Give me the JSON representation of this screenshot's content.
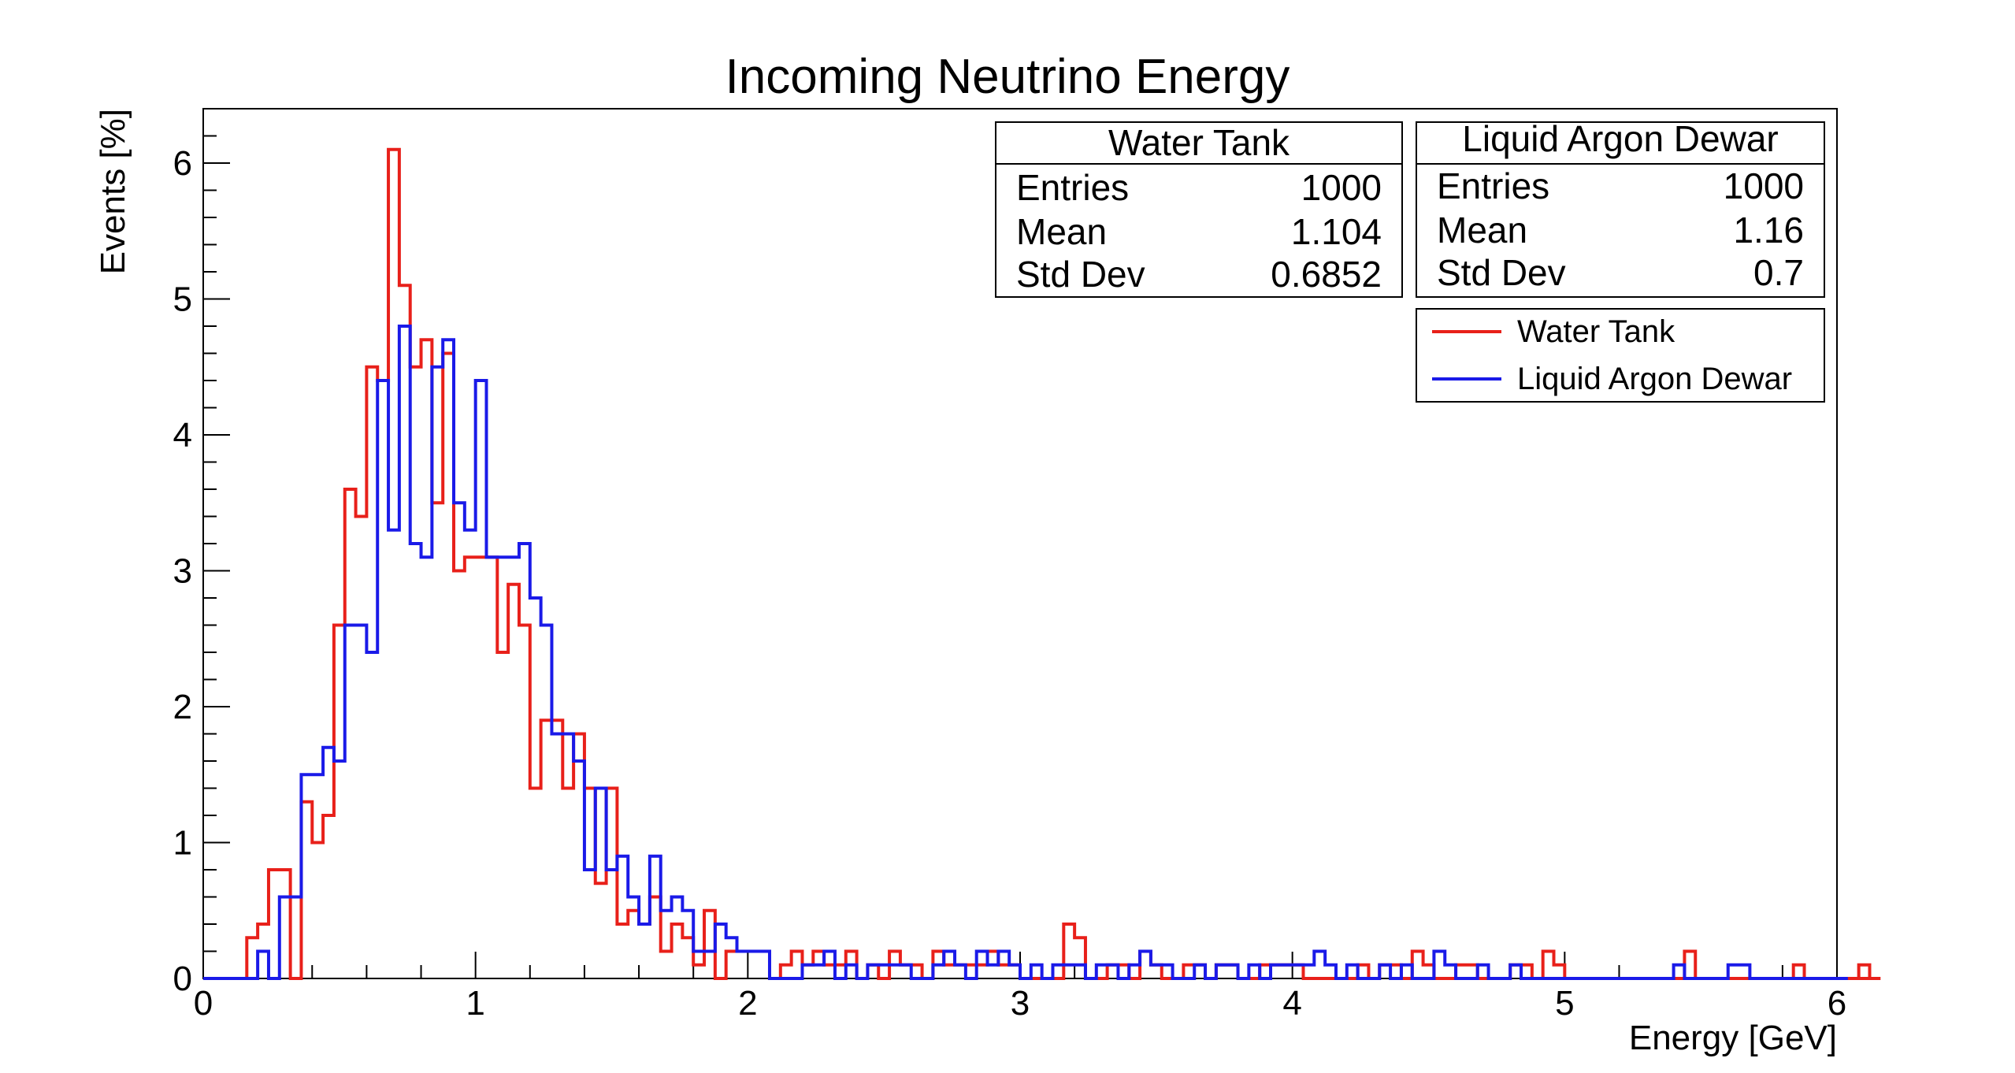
{
  "chart_data": {
    "type": "histogram",
    "title": "Incoming Neutrino Energy",
    "xlabel": "Energy [GeV]",
    "ylabel": "Events [%]",
    "xlim": [
      0,
      6
    ],
    "ylim": [
      0,
      6.4
    ],
    "x_ticks": [
      0,
      1,
      2,
      3,
      4,
      5,
      6
    ],
    "y_ticks": [
      0,
      1,
      2,
      3,
      4,
      5,
      6
    ],
    "bin_width": 0.04,
    "bins": 150,
    "legend_position": "top-right",
    "series": [
      {
        "name": "Water Tank",
        "color": "#e8201a",
        "values": [
          0,
          0,
          0,
          0,
          0.3,
          0.4,
          0.8,
          0.8,
          0,
          1.3,
          1.0,
          1.2,
          2.6,
          3.6,
          3.4,
          4.5,
          4.4,
          6.1,
          5.1,
          4.5,
          4.7,
          3.5,
          4.6,
          3.0,
          3.1,
          3.1,
          3.1,
          2.4,
          2.9,
          2.6,
          1.4,
          1.9,
          1.9,
          1.4,
          1.8,
          1.4,
          0.7,
          1.4,
          0.4,
          0.5,
          0.4,
          0.6,
          0.2,
          0.4,
          0.3,
          0.1,
          0.5,
          0,
          0.2,
          0.2,
          0.2,
          0.2,
          0,
          0.1,
          0.2,
          0.1,
          0.2,
          0.1,
          0.1,
          0.2,
          0,
          0.1,
          0,
          0.2,
          0.1,
          0.1,
          0,
          0.2,
          0.1,
          0.1,
          0.1,
          0.1,
          0.2,
          0.1,
          0.1,
          0,
          0,
          0,
          0,
          0.4,
          0.3,
          0,
          0,
          0.1,
          0.1,
          0,
          0.2,
          0.1,
          0,
          0,
          0.1,
          0.1,
          0,
          0.1,
          0.1,
          0,
          0,
          0.1,
          0.1,
          0.1,
          0.1,
          0,
          0,
          0,
          0,
          0,
          0.1,
          0,
          0.1,
          0.1,
          0,
          0.2,
          0.1,
          0,
          0,
          0.1,
          0.1,
          0,
          0,
          0,
          0.1,
          0.1,
          0,
          0.2,
          0.1,
          0,
          0,
          0,
          0,
          0,
          0,
          0,
          0,
          0,
          0,
          0,
          0.2,
          0,
          0,
          0,
          0,
          0,
          0,
          0,
          0,
          0,
          0.1,
          0,
          0,
          0,
          0,
          0,
          0.1,
          0
        ],
        "stats": {
          "Entries": "1000",
          "Mean": "1.104",
          "Std Dev": "0.6852"
        }
      },
      {
        "name": "Liquid Argon Dewar",
        "color": "#1a1ae8",
        "values": [
          0,
          0,
          0,
          0,
          0,
          0.2,
          0,
          0.6,
          0.6,
          1.5,
          1.5,
          1.7,
          1.6,
          2.6,
          2.6,
          2.4,
          4.4,
          3.3,
          4.8,
          3.2,
          3.1,
          4.5,
          4.7,
          3.5,
          3.3,
          4.4,
          3.1,
          3.1,
          3.1,
          3.2,
          2.8,
          2.6,
          1.8,
          1.8,
          1.6,
          0.8,
          1.4,
          0.8,
          0.9,
          0.6,
          0.4,
          0.9,
          0.5,
          0.6,
          0.5,
          0.2,
          0.2,
          0.4,
          0.3,
          0.2,
          0.2,
          0.2,
          0,
          0,
          0,
          0.1,
          0.1,
          0.2,
          0,
          0.1,
          0,
          0.1,
          0.1,
          0.1,
          0.1,
          0,
          0,
          0.1,
          0.2,
          0.1,
          0,
          0.2,
          0.1,
          0.2,
          0.1,
          0,
          0.1,
          0,
          0.1,
          0.1,
          0.1,
          0,
          0.1,
          0.1,
          0,
          0.1,
          0.2,
          0.1,
          0.1,
          0,
          0,
          0.1,
          0,
          0.1,
          0.1,
          0,
          0.1,
          0,
          0.1,
          0.1,
          0.1,
          0.1,
          0.2,
          0.1,
          0,
          0.1,
          0,
          0,
          0.1,
          0,
          0.1,
          0,
          0,
          0.2,
          0.1,
          0,
          0,
          0.1,
          0,
          0,
          0.1,
          0,
          0,
          0,
          0,
          0,
          0,
          0,
          0,
          0,
          0,
          0,
          0,
          0,
          0,
          0.1,
          0,
          0,
          0,
          0,
          0.1,
          0.1,
          0,
          0,
          0,
          0,
          0,
          0,
          0,
          0,
          0
        ],
        "stats": {
          "Entries": "1000",
          "Mean": "1.16",
          "Std Dev": "0.7"
        }
      }
    ]
  }
}
